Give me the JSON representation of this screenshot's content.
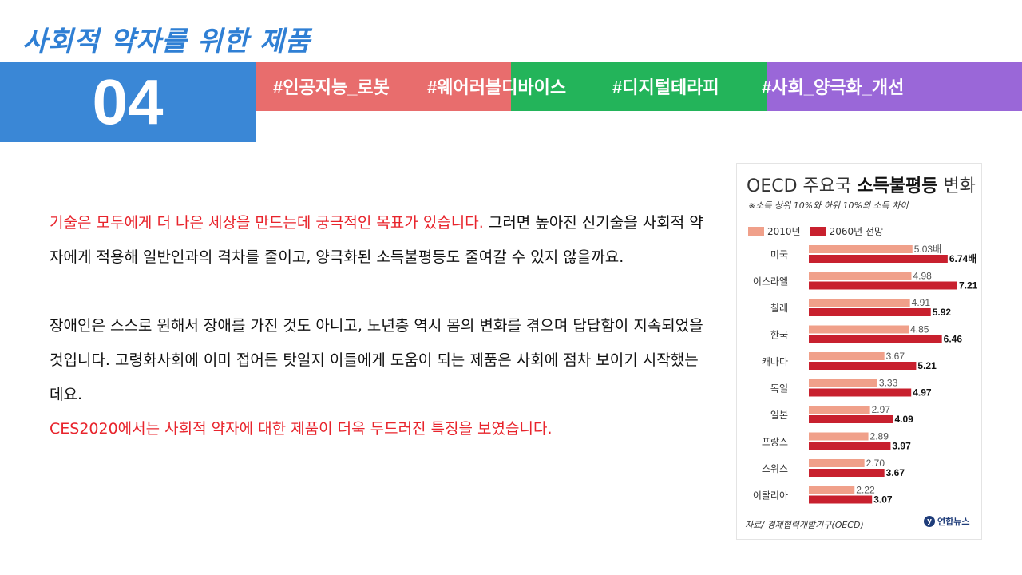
{
  "slide": {
    "title": "사회적 약자를 위한 제품",
    "number": "04",
    "tags": [
      "#인공지능_로봇",
      "#웨어러블디바이스",
      "#디지털테라피",
      "#사회_양극화_개선"
    ]
  },
  "body": {
    "p1_red": "기술은 모두에게 더 나은 세상을 만드는데 궁극적인 목표가 있습니다.",
    "p1_black": " 그러면 높아진 신기술을 사회적 약자에게 적용해 일반인과의 격차를 줄이고, 양극화된 소득불평등도 줄여갈 수 있지 않을까요.",
    "p2": "장애인은 스스로 원해서 장애를 가진 것도 아니고, 노년층 역시 몸의 변화를 겪으며 답답함이 지속되었을 것입니다. 고령화사회에 이미 접어든 탓일지 이들에게 도움이 되는 제품은 사회에 점차 보이기 시작했는데요.",
    "p3_red": "CES2020에서는 사회적 약자에 대한 제품이 더욱 두드러진 특징을 보였습니다."
  },
  "colors": {
    "title": "#2f7fd4",
    "number_box": "#3a87d6",
    "band_red": "#e86d6d",
    "band_green": "#23b45a",
    "band_purple": "#9a67d8",
    "highlight": "#e8242c"
  },
  "chart_data": {
    "type": "bar",
    "orientation": "horizontal",
    "title_prefix": "OECD 주요국 ",
    "title_bold": "소득불평등",
    "title_suffix": " 변화",
    "subtitle": "※소득 상위 10%와 하위 10%의 소득 차이",
    "categories": [
      "미국",
      "이스라엘",
      "칠레",
      "한국",
      "캐나다",
      "독일",
      "일본",
      "프랑스",
      "스위스",
      "이탈리아"
    ],
    "series": [
      {
        "name": "2010년",
        "color": "#f0a08a",
        "values": [
          5.03,
          4.98,
          4.91,
          4.85,
          3.67,
          3.33,
          2.97,
          2.89,
          2.7,
          2.22
        ],
        "labels": [
          "5.03배",
          "4.98",
          "4.91",
          "4.85",
          "3.67",
          "3.33",
          "2.97",
          "2.89",
          "2.70",
          "2.22"
        ]
      },
      {
        "name": "2060년 전망",
        "color": "#c8202e",
        "values": [
          6.74,
          7.21,
          5.92,
          6.46,
          5.21,
          4.97,
          4.09,
          3.97,
          3.67,
          3.07
        ],
        "labels": [
          "6.74배",
          "7.21",
          "5.92",
          "6.46",
          "5.21",
          "4.97",
          "4.09",
          "3.97",
          "3.67",
          "3.07"
        ]
      }
    ],
    "xlim": [
      0,
      7.21
    ],
    "source": "자료/ 경제협력개발기구(OECD)",
    "logo_text": "연합뉴스",
    "grid": false,
    "legend_position": "top-left"
  }
}
